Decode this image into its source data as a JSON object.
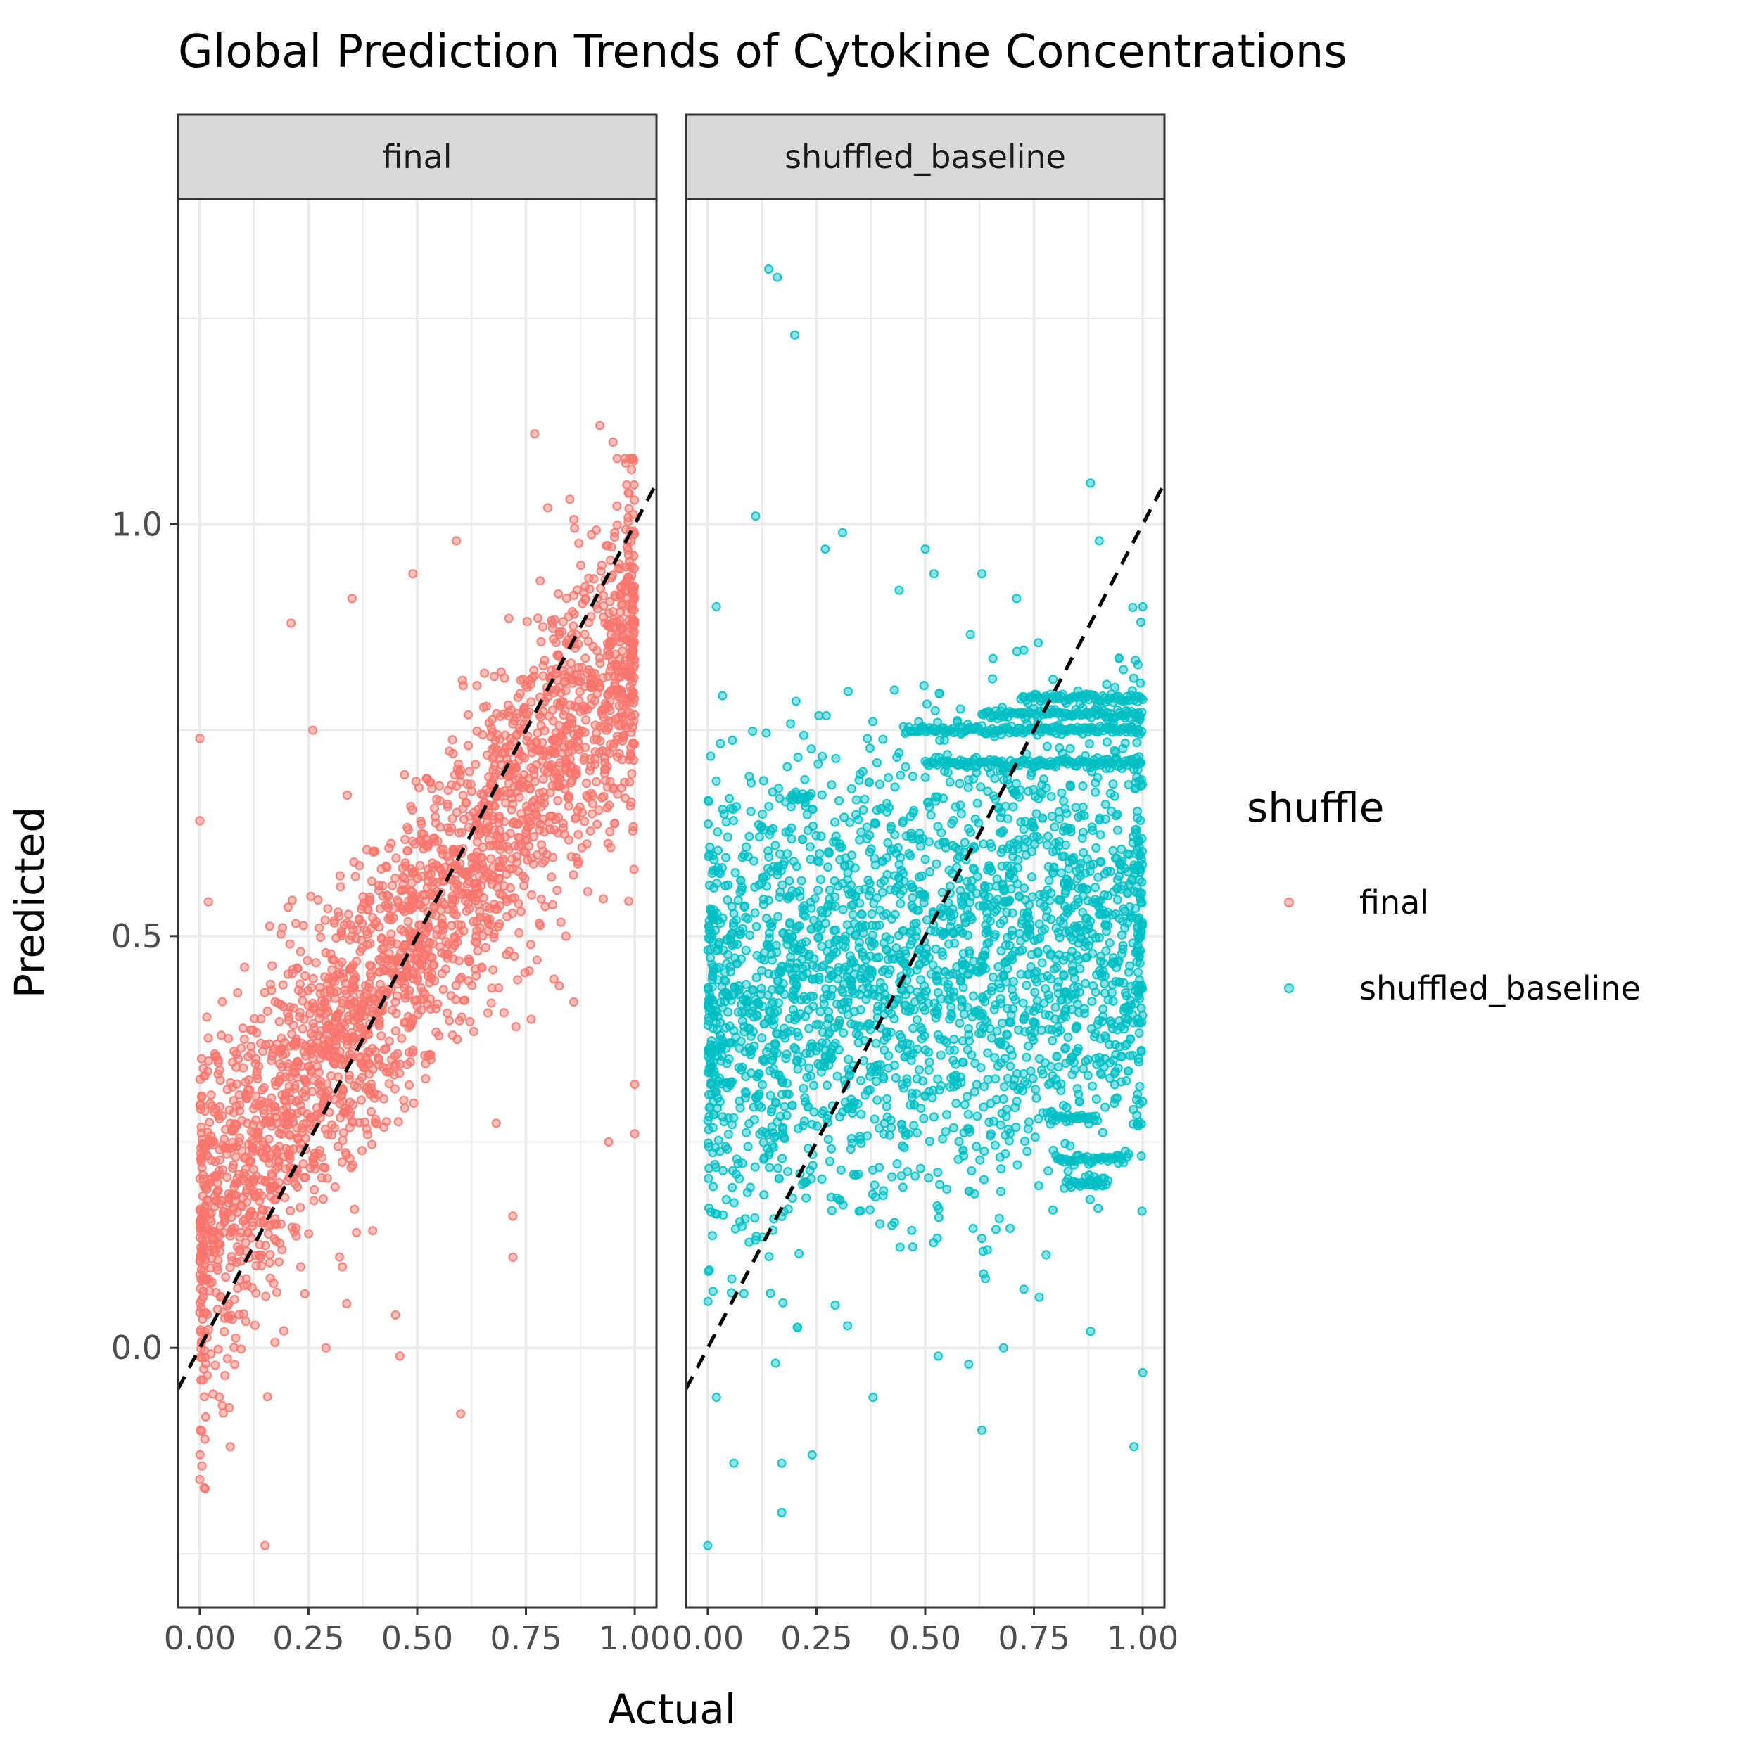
{
  "chart_data": {
    "type": "scatter",
    "title": "Global Prediction Trends of Cytokine Concentrations",
    "xlabel": "Actual",
    "ylabel": "Predicted",
    "facets": [
      "final",
      "shuffled_baseline"
    ],
    "xlim": [
      -0.05,
      1.05
    ],
    "ylim": [
      -0.315,
      1.395
    ],
    "x_ticks": [
      0.0,
      0.25,
      0.5,
      0.75,
      1.0
    ],
    "x_tick_labels": [
      "0.00",
      "0.25",
      "0.50",
      "0.75",
      "1.00"
    ],
    "y_ticks": [
      0.0,
      0.5,
      1.0
    ],
    "y_tick_labels": [
      "0.0",
      "0.5",
      "1.0"
    ],
    "y_minor_gridlines": [
      -0.25,
      0.25,
      0.75,
      1.25
    ],
    "x_minor_gridlines": [
      0.125,
      0.375,
      0.625,
      0.875
    ],
    "reference_line": {
      "type": "identity",
      "slope": 1,
      "intercept": 0,
      "style": "dashed",
      "color": "#000000"
    },
    "legend": {
      "title": "shuffle",
      "position": "right",
      "entries": [
        {
          "label": "final",
          "color": "#F8766D"
        },
        {
          "label": "shuffled_baseline",
          "color": "#00BFC4"
        }
      ]
    },
    "grid": true,
    "point_alpha": 0.5,
    "series": [
      {
        "name": "final",
        "facet": "final",
        "color": "#F8766D",
        "trend": {
          "slope": 0.72,
          "intercept": 0.14,
          "y_spread_sd": 0.11,
          "approx_n": 9000
        },
        "points": [
          {
            "x": 0.15,
            "y": -0.24
          },
          {
            "x": 0.0,
            "y": -0.16
          },
          {
            "x": 0.01,
            "y": -0.17
          },
          {
            "x": 0.6,
            "y": -0.08
          },
          {
            "x": 0.46,
            "y": -0.01
          },
          {
            "x": 0.45,
            "y": 0.04
          },
          {
            "x": 0.29,
            "y": 0.0
          },
          {
            "x": 0.07,
            "y": -0.12
          },
          {
            "x": 0.0,
            "y": 0.74
          },
          {
            "x": 0.0,
            "y": 0.64
          },
          {
            "x": 0.21,
            "y": 0.88
          },
          {
            "x": 0.35,
            "y": 0.91
          },
          {
            "x": 0.59,
            "y": 0.98
          },
          {
            "x": 0.77,
            "y": 1.11
          },
          {
            "x": 0.92,
            "y": 1.12
          },
          {
            "x": 0.95,
            "y": 1.1
          },
          {
            "x": 0.8,
            "y": 1.02
          },
          {
            "x": 0.94,
            "y": 0.25
          },
          {
            "x": 1.0,
            "y": 0.26
          },
          {
            "x": 1.0,
            "y": 0.32
          },
          {
            "x": 0.72,
            "y": 0.11
          },
          {
            "x": 0.72,
            "y": 0.16
          },
          {
            "x": 0.26,
            "y": 0.75
          },
          {
            "x": 0.49,
            "y": 0.94
          },
          {
            "x": 0.86,
            "y": 0.42
          }
        ]
      },
      {
        "name": "shuffled_baseline",
        "facet": "shuffled_baseline",
        "color": "#00BFC4",
        "trend": {
          "slope": 0.12,
          "intercept": 0.4,
          "y_spread_sd": 0.14,
          "approx_n": 9000
        },
        "horizontal_bands": [
          {
            "y": 0.79,
            "x_from": 0.72,
            "x_to": 1.0
          },
          {
            "y": 0.77,
            "x_from": 0.63,
            "x_to": 1.0
          },
          {
            "y": 0.75,
            "x_from": 0.45,
            "x_to": 1.0
          },
          {
            "y": 0.71,
            "x_from": 0.5,
            "x_to": 1.0
          },
          {
            "y": 0.67,
            "x_from": 0.19,
            "x_to": 0.24
          },
          {
            "y": 0.28,
            "x_from": 0.78,
            "x_to": 0.9
          },
          {
            "y": 0.23,
            "x_from": 0.8,
            "x_to": 0.97
          },
          {
            "y": 0.2,
            "x_from": 0.82,
            "x_to": 0.92
          }
        ],
        "points": [
          {
            "x": 0.14,
            "y": 1.31
          },
          {
            "x": 0.16,
            "y": 1.3
          },
          {
            "x": 0.2,
            "y": 1.23
          },
          {
            "x": 0.11,
            "y": 1.01
          },
          {
            "x": 0.88,
            "y": 1.05
          },
          {
            "x": 0.31,
            "y": 0.99
          },
          {
            "x": 0.27,
            "y": 0.97
          },
          {
            "x": 0.5,
            "y": 0.97
          },
          {
            "x": 0.52,
            "y": 0.94
          },
          {
            "x": 0.63,
            "y": 0.94
          },
          {
            "x": 0.44,
            "y": 0.92
          },
          {
            "x": 0.71,
            "y": 0.91
          },
          {
            "x": 0.9,
            "y": 0.98
          },
          {
            "x": 1.0,
            "y": 0.9
          },
          {
            "x": 0.0,
            "y": -0.24
          },
          {
            "x": 0.17,
            "y": -0.2
          },
          {
            "x": 0.63,
            "y": -0.1
          },
          {
            "x": 0.98,
            "y": -0.12
          },
          {
            "x": 0.06,
            "y": -0.14
          },
          {
            "x": 0.17,
            "y": -0.14
          },
          {
            "x": 0.24,
            "y": -0.13
          },
          {
            "x": 0.38,
            "y": -0.06
          },
          {
            "x": 0.53,
            "y": -0.01
          },
          {
            "x": 0.6,
            "y": -0.02
          },
          {
            "x": 0.68,
            "y": 0.0
          },
          {
            "x": 0.88,
            "y": 0.02
          },
          {
            "x": 1.0,
            "y": -0.03
          },
          {
            "x": 0.02,
            "y": -0.06
          }
        ]
      }
    ]
  }
}
